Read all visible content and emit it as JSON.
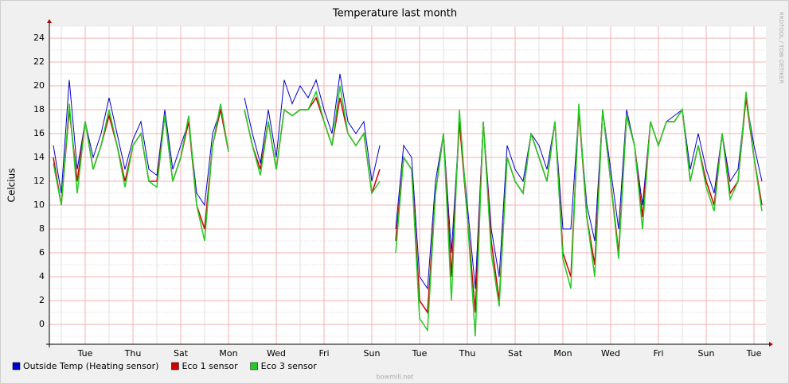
{
  "chart_data": {
    "type": "line",
    "title": "Temperature last month",
    "y_label": "Celcius",
    "side_note": "RRDTOOL / TOBI OETIKER",
    "footer": "bowmill.net",
    "categories": [
      null,
      null,
      null,
      null,
      "Tue",
      null,
      null,
      null,
      null,
      null,
      "Thu",
      null,
      null,
      null,
      null,
      null,
      "Sat",
      null,
      null,
      null,
      null,
      null,
      "Mon",
      null,
      null,
      null,
      null,
      null,
      "Wed",
      null,
      null,
      null,
      null,
      null,
      "Fri",
      null,
      null,
      null,
      null,
      null,
      "Sun",
      null,
      null,
      null,
      null,
      null,
      "Tue",
      null,
      null,
      null,
      null,
      null,
      "Thu",
      null,
      null,
      null,
      null,
      null,
      "Sat",
      null,
      null,
      null,
      null,
      null,
      "Mon",
      null,
      null,
      null,
      null,
      null,
      "Wed",
      null,
      null,
      null,
      null,
      null,
      "Fri",
      null,
      null,
      null,
      null,
      null,
      "Sun",
      null,
      null,
      null,
      null,
      null,
      "Tue",
      null
    ],
    "series": [
      {
        "name": "Outside Temp (Heating sensor)",
        "color": "#0000cc",
        "values": [
          15,
          11,
          20.5,
          13,
          17,
          14,
          16,
          19,
          16,
          13,
          15.5,
          17,
          13,
          12.5,
          18,
          13,
          15,
          17,
          11,
          10,
          16,
          18,
          14.5,
          null,
          19,
          16,
          13.5,
          18,
          14,
          20.5,
          18.5,
          20,
          19,
          20.5,
          18,
          16,
          21,
          17,
          16,
          17,
          12,
          15,
          null,
          8,
          15,
          14,
          4,
          3,
          12,
          16,
          6,
          17,
          10,
          3,
          17,
          8,
          4,
          15,
          13,
          12,
          16,
          15,
          13,
          17,
          8,
          8,
          18,
          10,
          7,
          18,
          13,
          8,
          18,
          15,
          10,
          17,
          15,
          17,
          17.5,
          18,
          13,
          16,
          13,
          11,
          16,
          12,
          13,
          19,
          15,
          12
        ]
      },
      {
        "name": "Eco 1 sensor",
        "color": "#cc0000",
        "values": [
          14,
          10,
          18,
          12,
          17,
          13,
          15,
          17.5,
          15,
          12,
          15,
          16,
          12,
          12,
          17.5,
          12,
          14,
          17,
          10,
          8,
          15,
          18,
          14.5,
          null,
          18,
          15,
          13,
          17,
          13,
          18,
          17.5,
          18,
          18,
          19,
          17,
          15,
          19,
          16,
          15,
          16,
          11,
          13,
          null,
          7,
          14,
          13,
          2,
          1,
          11,
          16,
          4,
          17,
          9,
          1,
          17,
          7,
          2,
          14,
          12,
          11,
          16,
          14,
          12,
          17,
          6,
          4,
          18,
          9,
          5,
          18,
          12,
          6,
          17.5,
          15,
          9,
          17,
          15,
          17,
          17,
          18,
          12,
          15,
          12,
          10,
          16,
          11,
          12,
          19,
          14,
          10
        ]
      },
      {
        "name": "Eco 3 sensor",
        "color": "#22cc22",
        "values": [
          13.5,
          10,
          18.5,
          11,
          17,
          13,
          15,
          18,
          15,
          11.5,
          15,
          16,
          12,
          11.5,
          17.5,
          12,
          14,
          17.5,
          10,
          7,
          15,
          18.5,
          14.5,
          null,
          18,
          15,
          12.5,
          17,
          13,
          18,
          17.5,
          18,
          18,
          19.5,
          17,
          15,
          20,
          16,
          15,
          16,
          11,
          12,
          null,
          6,
          14,
          13,
          0.5,
          -0.5,
          11,
          16,
          2,
          18,
          9,
          -1,
          17,
          6,
          1.5,
          14,
          12,
          11,
          16,
          14,
          12,
          17,
          5.5,
          3,
          18.5,
          9,
          4,
          18,
          12,
          5.5,
          17.5,
          15,
          8,
          17,
          15,
          17,
          17,
          18,
          12,
          15,
          11.5,
          9.5,
          16,
          10.5,
          12,
          19.5,
          14,
          9.5
        ]
      }
    ],
    "ylim": [
      -1.67,
      25
    ],
    "yticks": [
      0,
      2,
      4,
      6,
      8,
      10,
      12,
      14,
      16,
      18,
      20,
      22,
      24
    ],
    "yminorticks": [
      -1,
      1,
      3,
      5,
      7,
      9,
      11,
      13,
      15,
      17,
      19,
      21,
      23,
      25
    ],
    "grid": true
  }
}
